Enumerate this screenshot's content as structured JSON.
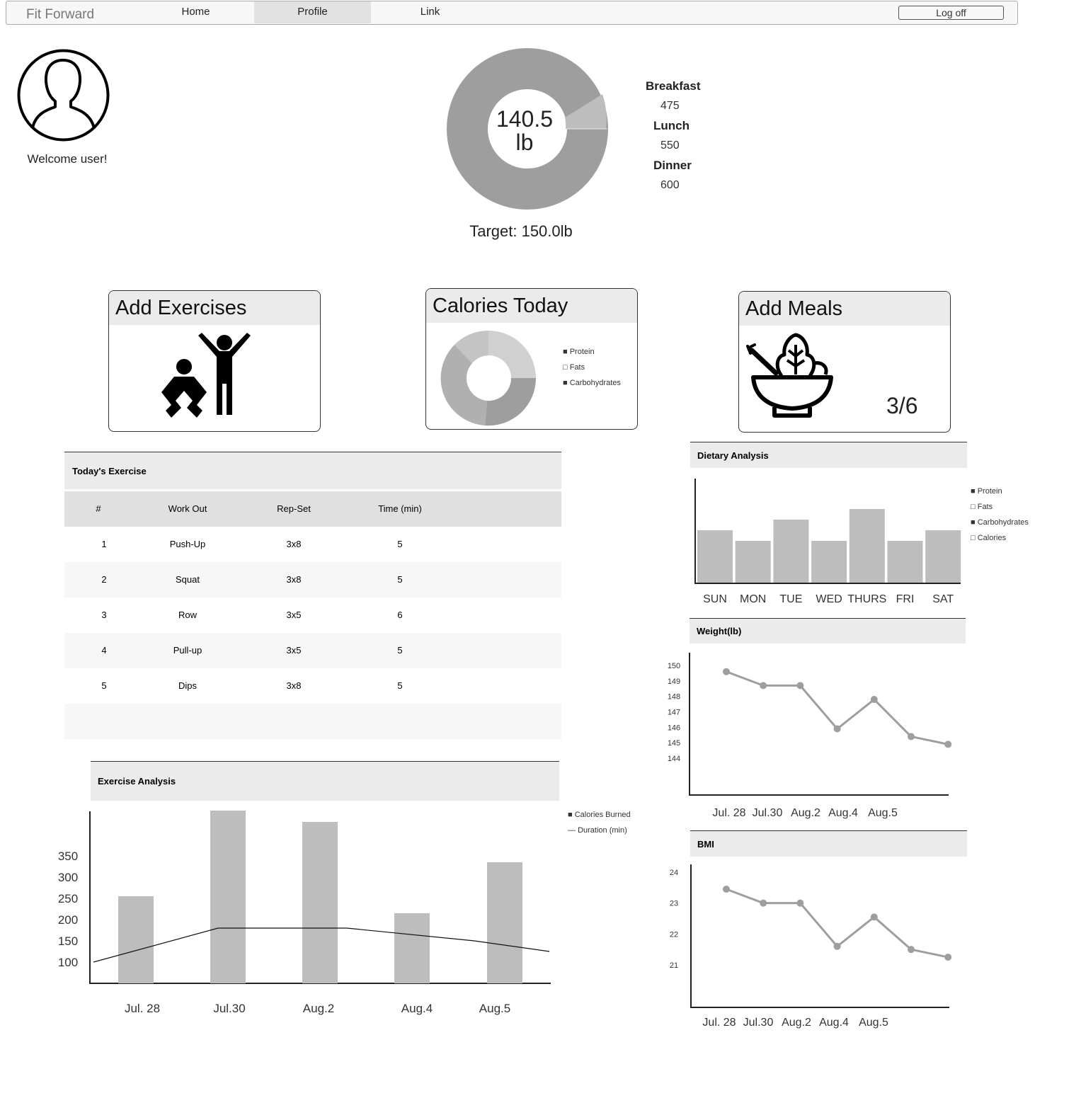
{
  "nav": {
    "brand": "Fit Forward",
    "links": [
      "Home",
      "Profile",
      "Link"
    ],
    "active": "Profile",
    "logoff": "Log off"
  },
  "profile": {
    "welcome": "Welcome user!"
  },
  "weight_summary": {
    "value": "140.5",
    "unit": "lb",
    "target": "Target: 150.0lb",
    "meals": [
      {
        "label": "Breakfast",
        "value": "475"
      },
      {
        "label": "Lunch",
        "value": "550"
      },
      {
        "label": "Dinner",
        "value": "600"
      }
    ]
  },
  "cards": {
    "add_exercises": {
      "title": "Add Exercises",
      "icon": "exercise-people-icon"
    },
    "calories_today": {
      "title": "Calories Today",
      "legend": [
        {
          "marker": "■",
          "label": "Protein"
        },
        {
          "marker": "□",
          "label": "Fats"
        },
        {
          "marker": "■",
          "label": "Carbohydrates"
        }
      ]
    },
    "add_meals": {
      "title": "Add Meals",
      "icon": "salad-bowl-icon",
      "progress": "3/6"
    }
  },
  "exercise_table": {
    "title": "Today's Exercise",
    "columns": [
      "#",
      "Work Out",
      "Rep-Set",
      "Time (min)"
    ],
    "rows": [
      [
        "1",
        "Push-Up",
        "3x8",
        "5"
      ],
      [
        "2",
        "Squat",
        "3x8",
        "5"
      ],
      [
        "3",
        "Row",
        "3x5",
        "6"
      ],
      [
        "4",
        "Pull-up",
        "3x5",
        "5"
      ],
      [
        "5",
        "Dips",
        "3x8",
        "5"
      ]
    ]
  },
  "colors": {
    "bar": "#bdbdbd",
    "line": "#9e9e9e",
    "header_bg": "#ebebeb",
    "donut_dark": "#9e9e9e"
  },
  "chart_data": [
    {
      "id": "dietary",
      "type": "bar",
      "title": "Dietary Analysis",
      "categories": [
        "SUN",
        "MON",
        "TUE",
        "WED",
        "THURS",
        "FRI",
        "SAT"
      ],
      "values": [
        50,
        40,
        60,
        40,
        70,
        40,
        50
      ],
      "legend": [
        {
          "marker": "■",
          "label": "Protein"
        },
        {
          "marker": "□",
          "label": "Fats"
        },
        {
          "marker": "■",
          "label": "Carbohydrates"
        },
        {
          "marker": "□",
          "label": "Calories"
        }
      ]
    },
    {
      "id": "weight",
      "type": "line",
      "title": "Weight(lb)",
      "yticks": [
        "150",
        "149",
        "148",
        "147",
        "146",
        "145",
        "144"
      ],
      "xticks": [
        "Jul. 28",
        "Jul.30",
        "Aug.2",
        "Aug.4",
        "Aug.5"
      ],
      "y": [
        149.6,
        148.7,
        148.7,
        145.9,
        147.8,
        145.4,
        144.9
      ]
    },
    {
      "id": "bmi",
      "type": "line",
      "title": "BMI",
      "yticks": [
        "24",
        "23",
        "22",
        "21"
      ],
      "xticks": [
        "Jul. 28",
        "Jul.30",
        "Aug.2",
        "Aug.4",
        "Aug.5"
      ],
      "y": [
        23.45,
        23.0,
        23.0,
        21.6,
        22.55,
        21.5,
        21.25
      ]
    },
    {
      "id": "exercise",
      "type": "bar",
      "title": "Exercise Analysis",
      "categories": [
        "Jul. 28",
        "Jul.30",
        "Aug.2",
        "Aug.4",
        "Aug.5"
      ],
      "yticks": [
        "350",
        "300",
        "250",
        "200",
        "150",
        "100"
      ],
      "series": [
        {
          "name": "Calories Burned",
          "values": [
            255,
            470,
            430,
            215,
            335
          ]
        },
        {
          "name": "Duration (min)",
          "values": [
            100,
            180,
            180,
            150,
            125
          ]
        }
      ],
      "legend": [
        {
          "marker": "■",
          "label": "Calories Burned"
        },
        {
          "marker": "—",
          "label": "Duration (min)"
        }
      ]
    }
  ]
}
